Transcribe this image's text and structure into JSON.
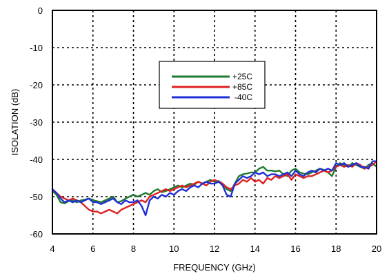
{
  "chart_data": {
    "type": "line",
    "xlabel": "FREQUENCY (GHz)",
    "ylabel": "ISOLATION (dB)",
    "xlim": [
      4,
      20
    ],
    "ylim": [
      -60,
      0
    ],
    "xticks": [
      4,
      6,
      8,
      10,
      12,
      14,
      16,
      18,
      20
    ],
    "yticks": [
      0,
      -10,
      -20,
      -30,
      -40,
      -50,
      -60
    ],
    "grid": true,
    "legend_position": "upper-center",
    "series": [
      {
        "name": "+25C",
        "color": "#1f7a2e",
        "x": [
          4.0,
          4.2,
          4.4,
          4.6,
          4.8,
          5.0,
          5.2,
          5.4,
          5.6,
          5.8,
          6.0,
          6.2,
          6.4,
          6.6,
          6.8,
          7.0,
          7.2,
          7.4,
          7.6,
          7.8,
          8.0,
          8.2,
          8.4,
          8.6,
          8.8,
          9.0,
          9.2,
          9.4,
          9.6,
          9.8,
          10.0,
          10.2,
          10.4,
          10.6,
          10.8,
          11.0,
          11.2,
          11.4,
          11.6,
          11.8,
          12.0,
          12.2,
          12.4,
          12.6,
          12.8,
          13.0,
          13.2,
          13.4,
          13.6,
          13.8,
          14.0,
          14.2,
          14.4,
          14.6,
          14.8,
          15.0,
          15.2,
          15.4,
          15.6,
          15.8,
          16.0,
          16.2,
          16.4,
          16.6,
          16.8,
          17.0,
          17.2,
          17.4,
          17.6,
          17.8,
          18.0,
          18.2,
          18.4,
          18.6,
          18.8,
          19.0,
          19.2,
          19.4,
          19.6,
          19.8,
          20.0
        ],
        "y": [
          -48.5,
          -49.5,
          -51.5,
          -51.8,
          -51.2,
          -51.0,
          -51.5,
          -51.0,
          -50.8,
          -50.5,
          -51.0,
          -51.2,
          -51.5,
          -51.0,
          -50.5,
          -50.0,
          -51.5,
          -51.2,
          -50.5,
          -50.0,
          -49.5,
          -50.0,
          -49.5,
          -49.0,
          -49.5,
          -48.5,
          -48.0,
          -48.8,
          -48.5,
          -48.0,
          -47.5,
          -47.0,
          -47.5,
          -47.0,
          -46.5,
          -46.8,
          -46.0,
          -46.5,
          -46.0,
          -45.5,
          -46.0,
          -45.8,
          -46.5,
          -48.0,
          -48.5,
          -46.5,
          -44.5,
          -44.0,
          -43.8,
          -43.5,
          -43.5,
          -42.5,
          -42.0,
          -43.0,
          -43.0,
          -43.2,
          -43.0,
          -44.0,
          -44.5,
          -43.0,
          -42.5,
          -43.5,
          -43.8,
          -44.0,
          -43.5,
          -43.0,
          -42.5,
          -42.8,
          -43.5,
          -44.5,
          -42.0,
          -41.0,
          -41.5,
          -42.0,
          -41.0,
          -41.5,
          -42.0,
          -42.5,
          -41.5,
          -41.0,
          -42.0
        ]
      },
      {
        "name": "+85C",
        "color": "#e02020",
        "x": [
          4.0,
          4.2,
          4.4,
          4.6,
          4.8,
          5.0,
          5.2,
          5.4,
          5.6,
          5.8,
          6.0,
          6.2,
          6.4,
          6.6,
          6.8,
          7.0,
          7.2,
          7.4,
          7.6,
          7.8,
          8.0,
          8.2,
          8.4,
          8.6,
          8.8,
          9.0,
          9.2,
          9.4,
          9.6,
          9.8,
          10.0,
          10.2,
          10.4,
          10.6,
          10.8,
          11.0,
          11.2,
          11.4,
          11.6,
          11.8,
          12.0,
          12.2,
          12.4,
          12.6,
          12.8,
          13.0,
          13.2,
          13.4,
          13.6,
          13.8,
          14.0,
          14.2,
          14.4,
          14.6,
          14.8,
          15.0,
          15.2,
          15.4,
          15.6,
          15.8,
          16.0,
          16.2,
          16.4,
          16.6,
          16.8,
          17.0,
          17.2,
          17.4,
          17.6,
          17.8,
          18.0,
          18.2,
          18.4,
          18.6,
          18.8,
          19.0,
          19.2,
          19.4,
          19.6,
          19.8,
          20.0
        ],
        "y": [
          -48.0,
          -49.0,
          -50.0,
          -50.5,
          -51.0,
          -50.5,
          -51.0,
          -51.5,
          -52.5,
          -53.5,
          -54.0,
          -54.0,
          -54.5,
          -54.0,
          -53.5,
          -54.0,
          -54.5,
          -53.5,
          -53.0,
          -52.5,
          -52.0,
          -51.5,
          -51.0,
          -51.5,
          -50.0,
          -49.5,
          -49.0,
          -48.5,
          -48.0,
          -48.5,
          -48.0,
          -47.5,
          -47.0,
          -47.5,
          -47.0,
          -46.5,
          -46.0,
          -46.5,
          -47.0,
          -46.0,
          -45.5,
          -46.0,
          -46.5,
          -47.5,
          -48.0,
          -47.0,
          -46.5,
          -45.5,
          -46.0,
          -45.0,
          -46.0,
          -45.5,
          -46.5,
          -45.0,
          -45.5,
          -44.5,
          -45.0,
          -44.5,
          -44.0,
          -45.5,
          -44.0,
          -44.5,
          -45.0,
          -44.5,
          -44.5,
          -44.0,
          -43.5,
          -43.0,
          -43.5,
          -43.0,
          -42.0,
          -41.5,
          -42.0,
          -41.5,
          -42.0,
          -41.0,
          -41.5,
          -42.5,
          -42.0,
          -41.5,
          -40.5
        ]
      },
      {
        "name": "-40C",
        "color": "#1f2fd6",
        "x": [
          4.0,
          4.2,
          4.4,
          4.6,
          4.8,
          5.0,
          5.2,
          5.4,
          5.6,
          5.8,
          6.0,
          6.2,
          6.4,
          6.6,
          6.8,
          7.0,
          7.2,
          7.4,
          7.6,
          7.8,
          8.0,
          8.2,
          8.4,
          8.6,
          8.8,
          9.0,
          9.2,
          9.4,
          9.6,
          9.8,
          10.0,
          10.2,
          10.4,
          10.6,
          10.8,
          11.0,
          11.2,
          11.4,
          11.6,
          11.8,
          12.0,
          12.2,
          12.4,
          12.6,
          12.8,
          13.0,
          13.2,
          13.4,
          13.6,
          13.8,
          14.0,
          14.2,
          14.4,
          14.6,
          14.8,
          15.0,
          15.2,
          15.4,
          15.6,
          15.8,
          16.0,
          16.2,
          16.4,
          16.6,
          16.8,
          17.0,
          17.2,
          17.4,
          17.6,
          17.8,
          18.0,
          18.2,
          18.4,
          18.6,
          18.8,
          19.0,
          19.2,
          19.4,
          19.6,
          19.8,
          20.0
        ],
        "y": [
          -48.0,
          -49.0,
          -50.5,
          -51.5,
          -51.0,
          -51.5,
          -51.0,
          -51.5,
          -51.0,
          -50.5,
          -51.5,
          -51.5,
          -52.0,
          -51.5,
          -51.0,
          -50.5,
          -51.5,
          -52.0,
          -51.0,
          -51.5,
          -51.5,
          -51.0,
          -52.5,
          -55.0,
          -51.0,
          -50.0,
          -50.5,
          -49.5,
          -50.0,
          -49.0,
          -49.5,
          -48.5,
          -48.0,
          -48.5,
          -47.5,
          -47.0,
          -47.5,
          -46.5,
          -46.0,
          -46.5,
          -46.5,
          -46.0,
          -47.0,
          -49.5,
          -50.0,
          -46.5,
          -45.5,
          -44.5,
          -45.0,
          -44.5,
          -43.5,
          -44.0,
          -43.5,
          -44.5,
          -44.0,
          -44.0,
          -44.5,
          -44.0,
          -43.5,
          -44.5,
          -43.0,
          -44.0,
          -44.5,
          -43.5,
          -43.0,
          -43.5,
          -42.5,
          -43.0,
          -42.5,
          -43.0,
          -41.0,
          -41.5,
          -41.0,
          -42.0,
          -41.5,
          -41.0,
          -42.0,
          -42.0,
          -42.5,
          -40.5,
          -40.5
        ]
      }
    ]
  }
}
